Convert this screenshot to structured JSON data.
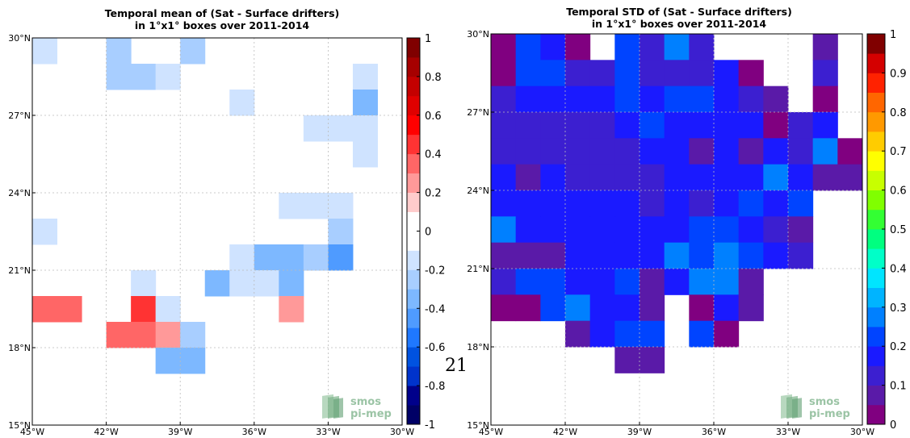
{
  "page_number": "21",
  "logo": {
    "line1": "smos",
    "line2": "pi-mep"
  },
  "chart_data": [
    {
      "type": "heatmap",
      "title": "Temporal mean of (Sat - Surface drifters)",
      "subtitle": "in 1°x1° boxes over 2011-2014",
      "x_ticks": [
        "45°W",
        "42°W",
        "39°W",
        "36°W",
        "33°W",
        "30°W"
      ],
      "y_ticks": [
        "30°N",
        "27°N",
        "24°N",
        "21°N",
        "18°N",
        "15°N"
      ],
      "xlim": [
        -45,
        -30
      ],
      "ylim": [
        15,
        30
      ],
      "colorbar": {
        "min": -1,
        "max": 1,
        "tick_labels": [
          "1",
          "0.8",
          "0.6",
          "0.4",
          "0.2",
          "0",
          "-0.2",
          "-0.4",
          "-0.6",
          "-0.8",
          "-1"
        ],
        "colors": [
          "#000066",
          "#00008b",
          "#0033cc",
          "#0052e0",
          "#1f78ff",
          "#4f9bff",
          "#7db8ff",
          "#a8ceff",
          "#cfe3ff",
          "#ffffff",
          "#ffffff",
          "#ffcccc",
          "#ff9999",
          "#ff6666",
          "#ff3333",
          "#ff0000",
          "#e00000",
          "#c40000",
          "#a60000",
          "#800000"
        ]
      },
      "cells": [
        {
          "lon": -45,
          "lat": 29,
          "v": -0.15
        },
        {
          "lon": -42,
          "lat": 29,
          "v": -0.3
        },
        {
          "lon": -39,
          "lat": 29,
          "v": -0.3
        },
        {
          "lon": -42,
          "lat": 28,
          "v": -0.3
        },
        {
          "lon": -41,
          "lat": 28,
          "v": -0.3
        },
        {
          "lon": -40,
          "lat": 28,
          "v": -0.2
        },
        {
          "lon": -32,
          "lat": 28,
          "v": -0.2
        },
        {
          "lon": -37,
          "lat": 27,
          "v": -0.15
        },
        {
          "lon": -32,
          "lat": 27,
          "v": -0.35
        },
        {
          "lon": -34,
          "lat": 26,
          "v": -0.15
        },
        {
          "lon": -33,
          "lat": 26,
          "v": -0.15
        },
        {
          "lon": -32,
          "lat": 26,
          "v": -0.15
        },
        {
          "lon": -32,
          "lat": 25,
          "v": -0.15
        },
        {
          "lon": -35,
          "lat": 23,
          "v": -0.15
        },
        {
          "lon": -34,
          "lat": 23,
          "v": -0.15
        },
        {
          "lon": -33,
          "lat": 23,
          "v": -0.15
        },
        {
          "lon": -45,
          "lat": 22,
          "v": -0.15
        },
        {
          "lon": -33,
          "lat": 22,
          "v": -0.3
        },
        {
          "lon": -37,
          "lat": 21,
          "v": -0.15
        },
        {
          "lon": -36,
          "lat": 21,
          "v": -0.35
        },
        {
          "lon": -35,
          "lat": 21,
          "v": -0.4
        },
        {
          "lon": -34,
          "lat": 21,
          "v": -0.3
        },
        {
          "lon": -33,
          "lat": 21,
          "v": -0.45
        },
        {
          "lon": -41,
          "lat": 20,
          "v": -0.2
        },
        {
          "lon": -38,
          "lat": 20,
          "v": -0.4
        },
        {
          "lon": -37,
          "lat": 20,
          "v": -0.15
        },
        {
          "lon": -36,
          "lat": 20,
          "v": -0.15
        },
        {
          "lon": -35,
          "lat": 20,
          "v": -0.35
        },
        {
          "lon": -45,
          "lat": 19,
          "v": 0.3
        },
        {
          "lon": -44,
          "lat": 19,
          "v": 0.3
        },
        {
          "lon": -41,
          "lat": 19,
          "v": 0.45
        },
        {
          "lon": -40,
          "lat": 19,
          "v": -0.15
        },
        {
          "lon": -35,
          "lat": 19,
          "v": 0.2
        },
        {
          "lon": -42,
          "lat": 18,
          "v": 0.3
        },
        {
          "lon": -41,
          "lat": 18,
          "v": 0.3
        },
        {
          "lon": -40,
          "lat": 18,
          "v": 0.2
        },
        {
          "lon": -39,
          "lat": 18,
          "v": -0.3
        },
        {
          "lon": -40,
          "lat": 17,
          "v": -0.35
        },
        {
          "lon": -39,
          "lat": 17,
          "v": -0.35
        }
      ]
    },
    {
      "type": "heatmap",
      "title": "Temporal STD of (Sat - Surface drifters)",
      "subtitle": "in 1°x1° boxes over 2011-2014",
      "x_ticks": [
        "45°W",
        "42°W",
        "39°W",
        "36°W",
        "33°W",
        "30°W"
      ],
      "y_ticks": [
        "30°N",
        "27°N",
        "24°N",
        "21°N",
        "18°N",
        "15°N"
      ],
      "xlim": [
        -45,
        -30
      ],
      "ylim": [
        15,
        30
      ],
      "colorbar": {
        "min": 0,
        "max": 1,
        "tick_labels": [
          "1",
          "0.9",
          "0.8",
          "0.7",
          "0.6",
          "0.5",
          "0.4",
          "0.3",
          "0.2",
          "0.1",
          "0"
        ],
        "colors": [
          "#800080",
          "#5a1aa8",
          "#3c1fd0",
          "#1a1aff",
          "#0044ff",
          "#0080ff",
          "#00b4ff",
          "#00e5ff",
          "#00ffc8",
          "#00ff80",
          "#33ff33",
          "#80ff00",
          "#c8ff00",
          "#ffff00",
          "#ffcc00",
          "#ff9900",
          "#ff6600",
          "#ff2200",
          "#d40000",
          "#800000"
        ]
      },
      "cells": [
        {
          "lon": -45,
          "lat": 29,
          "v": 0.02
        },
        {
          "lon": -44,
          "lat": 29,
          "v": 0.2
        },
        {
          "lon": -43,
          "lat": 29,
          "v": 0.15
        },
        {
          "lon": -42,
          "lat": 29,
          "v": 0.02
        },
        {
          "lon": -40,
          "lat": 29,
          "v": 0.2
        },
        {
          "lon": -39,
          "lat": 29,
          "v": 0.1
        },
        {
          "lon": -38,
          "lat": 29,
          "v": 0.27
        },
        {
          "lon": -37,
          "lat": 29,
          "v": 0.1
        },
        {
          "lon": -32,
          "lat": 29,
          "v": 0.05
        },
        {
          "lon": -45,
          "lat": 28,
          "v": 0.02
        },
        {
          "lon": -44,
          "lat": 28,
          "v": 0.2
        },
        {
          "lon": -43,
          "lat": 28,
          "v": 0.2
        },
        {
          "lon": -42,
          "lat": 28,
          "v": 0.1
        },
        {
          "lon": -41,
          "lat": 28,
          "v": 0.1
        },
        {
          "lon": -40,
          "lat": 28,
          "v": 0.2
        },
        {
          "lon": -39,
          "lat": 28,
          "v": 0.1
        },
        {
          "lon": -38,
          "lat": 28,
          "v": 0.1
        },
        {
          "lon": -37,
          "lat": 28,
          "v": 0.1
        },
        {
          "lon": -36,
          "lat": 28,
          "v": 0.15
        },
        {
          "lon": -35,
          "lat": 28,
          "v": 0.02
        },
        {
          "lon": -32,
          "lat": 28,
          "v": 0.1
        },
        {
          "lon": -45,
          "lat": 27,
          "v": 0.1
        },
        {
          "lon": -44,
          "lat": 27,
          "v": 0.15
        },
        {
          "lon": -43,
          "lat": 27,
          "v": 0.15
        },
        {
          "lon": -42,
          "lat": 27,
          "v": 0.15
        },
        {
          "lon": -41,
          "lat": 27,
          "v": 0.15
        },
        {
          "lon": -40,
          "lat": 27,
          "v": 0.2
        },
        {
          "lon": -39,
          "lat": 27,
          "v": 0.15
        },
        {
          "lon": -38,
          "lat": 27,
          "v": 0.2
        },
        {
          "lon": -37,
          "lat": 27,
          "v": 0.2
        },
        {
          "lon": -36,
          "lat": 27,
          "v": 0.15
        },
        {
          "lon": -35,
          "lat": 27,
          "v": 0.1
        },
        {
          "lon": -34,
          "lat": 27,
          "v": 0.05
        },
        {
          "lon": -32,
          "lat": 27,
          "v": 0.02
        },
        {
          "lon": -45,
          "lat": 26,
          "v": 0.1
        },
        {
          "lon": -44,
          "lat": 26,
          "v": 0.1
        },
        {
          "lon": -43,
          "lat": 26,
          "v": 0.1
        },
        {
          "lon": -42,
          "lat": 26,
          "v": 0.1
        },
        {
          "lon": -41,
          "lat": 26,
          "v": 0.1
        },
        {
          "lon": -40,
          "lat": 26,
          "v": 0.15
        },
        {
          "lon": -39,
          "lat": 26,
          "v": 0.2
        },
        {
          "lon": -38,
          "lat": 26,
          "v": 0.15
        },
        {
          "lon": -37,
          "lat": 26,
          "v": 0.15
        },
        {
          "lon": -36,
          "lat": 26,
          "v": 0.15
        },
        {
          "lon": -35,
          "lat": 26,
          "v": 0.15
        },
        {
          "lon": -34,
          "lat": 26,
          "v": 0.02
        },
        {
          "lon": -33,
          "lat": 26,
          "v": 0.1
        },
        {
          "lon": -32,
          "lat": 26,
          "v": 0.15
        },
        {
          "lon": -45,
          "lat": 25,
          "v": 0.1
        },
        {
          "lon": -44,
          "lat": 25,
          "v": 0.1
        },
        {
          "lon": -43,
          "lat": 25,
          "v": 0.1
        },
        {
          "lon": -42,
          "lat": 25,
          "v": 0.1
        },
        {
          "lon": -41,
          "lat": 25,
          "v": 0.1
        },
        {
          "lon": -40,
          "lat": 25,
          "v": 0.1
        },
        {
          "lon": -39,
          "lat": 25,
          "v": 0.15
        },
        {
          "lon": -38,
          "lat": 25,
          "v": 0.15
        },
        {
          "lon": -37,
          "lat": 25,
          "v": 0.05
        },
        {
          "lon": -36,
          "lat": 25,
          "v": 0.15
        },
        {
          "lon": -35,
          "lat": 25,
          "v": 0.05
        },
        {
          "lon": -34,
          "lat": 25,
          "v": 0.15
        },
        {
          "lon": -33,
          "lat": 25,
          "v": 0.1
        },
        {
          "lon": -32,
          "lat": 25,
          "v": 0.27
        },
        {
          "lon": -31,
          "lat": 25,
          "v": 0.02
        },
        {
          "lon": -45,
          "lat": 24,
          "v": 0.15
        },
        {
          "lon": -44,
          "lat": 24,
          "v": 0.05
        },
        {
          "lon": -43,
          "lat": 24,
          "v": 0.15
        },
        {
          "lon": -42,
          "lat": 24,
          "v": 0.1
        },
        {
          "lon": -41,
          "lat": 24,
          "v": 0.1
        },
        {
          "lon": -40,
          "lat": 24,
          "v": 0.1
        },
        {
          "lon": -39,
          "lat": 24,
          "v": 0.1
        },
        {
          "lon": -38,
          "lat": 24,
          "v": 0.15
        },
        {
          "lon": -37,
          "lat": 24,
          "v": 0.15
        },
        {
          "lon": -36,
          "lat": 24,
          "v": 0.15
        },
        {
          "lon": -35,
          "lat": 24,
          "v": 0.15
        },
        {
          "lon": -34,
          "lat": 24,
          "v": 0.25
        },
        {
          "lon": -33,
          "lat": 24,
          "v": 0.15
        },
        {
          "lon": -32,
          "lat": 24,
          "v": 0.05
        },
        {
          "lon": -31,
          "lat": 24,
          "v": 0.05
        },
        {
          "lon": -45,
          "lat": 23,
          "v": 0.15
        },
        {
          "lon": -44,
          "lat": 23,
          "v": 0.15
        },
        {
          "lon": -43,
          "lat": 23,
          "v": 0.15
        },
        {
          "lon": -42,
          "lat": 23,
          "v": 0.15
        },
        {
          "lon": -41,
          "lat": 23,
          "v": 0.15
        },
        {
          "lon": -40,
          "lat": 23,
          "v": 0.15
        },
        {
          "lon": -39,
          "lat": 23,
          "v": 0.1
        },
        {
          "lon": -38,
          "lat": 23,
          "v": 0.15
        },
        {
          "lon": -37,
          "lat": 23,
          "v": 0.1
        },
        {
          "lon": -36,
          "lat": 23,
          "v": 0.15
        },
        {
          "lon": -35,
          "lat": 23,
          "v": 0.2
        },
        {
          "lon": -34,
          "lat": 23,
          "v": 0.15
        },
        {
          "lon": -33,
          "lat": 23,
          "v": 0.2
        },
        {
          "lon": -45,
          "lat": 22,
          "v": 0.27
        },
        {
          "lon": -44,
          "lat": 22,
          "v": 0.15
        },
        {
          "lon": -43,
          "lat": 22,
          "v": 0.15
        },
        {
          "lon": -42,
          "lat": 22,
          "v": 0.15
        },
        {
          "lon": -41,
          "lat": 22,
          "v": 0.15
        },
        {
          "lon": -40,
          "lat": 22,
          "v": 0.15
        },
        {
          "lon": -39,
          "lat": 22,
          "v": 0.15
        },
        {
          "lon": -38,
          "lat": 22,
          "v": 0.15
        },
        {
          "lon": -37,
          "lat": 22,
          "v": 0.2
        },
        {
          "lon": -36,
          "lat": 22,
          "v": 0.2
        },
        {
          "lon": -35,
          "lat": 22,
          "v": 0.15
        },
        {
          "lon": -34,
          "lat": 22,
          "v": 0.1
        },
        {
          "lon": -33,
          "lat": 22,
          "v": 0.05
        },
        {
          "lon": -45,
          "lat": 21,
          "v": 0.05
        },
        {
          "lon": -44,
          "lat": 21,
          "v": 0.05
        },
        {
          "lon": -43,
          "lat": 21,
          "v": 0.05
        },
        {
          "lon": -42,
          "lat": 21,
          "v": 0.15
        },
        {
          "lon": -41,
          "lat": 21,
          "v": 0.15
        },
        {
          "lon": -40,
          "lat": 21,
          "v": 0.15
        },
        {
          "lon": -39,
          "lat": 21,
          "v": 0.15
        },
        {
          "lon": -38,
          "lat": 21,
          "v": 0.25
        },
        {
          "lon": -37,
          "lat": 21,
          "v": 0.2
        },
        {
          "lon": -36,
          "lat": 21,
          "v": 0.25
        },
        {
          "lon": -35,
          "lat": 21,
          "v": 0.2
        },
        {
          "lon": -34,
          "lat": 21,
          "v": 0.15
        },
        {
          "lon": -33,
          "lat": 21,
          "v": 0.1
        },
        {
          "lon": -45,
          "lat": 20,
          "v": 0.1
        },
        {
          "lon": -44,
          "lat": 20,
          "v": 0.22
        },
        {
          "lon": -43,
          "lat": 20,
          "v": 0.22
        },
        {
          "lon": -42,
          "lat": 20,
          "v": 0.15
        },
        {
          "lon": -41,
          "lat": 20,
          "v": 0.15
        },
        {
          "lon": -40,
          "lat": 20,
          "v": 0.2
        },
        {
          "lon": -39,
          "lat": 20,
          "v": 0.05
        },
        {
          "lon": -38,
          "lat": 20,
          "v": 0.15
        },
        {
          "lon": -37,
          "lat": 20,
          "v": 0.25
        },
        {
          "lon": -36,
          "lat": 20,
          "v": 0.25
        },
        {
          "lon": -35,
          "lat": 20,
          "v": 0.05
        },
        {
          "lon": -45,
          "lat": 19,
          "v": 0.02
        },
        {
          "lon": -44,
          "lat": 19,
          "v": 0.02
        },
        {
          "lon": -43,
          "lat": 19,
          "v": 0.2
        },
        {
          "lon": -42,
          "lat": 19,
          "v": 0.25
        },
        {
          "lon": -41,
          "lat": 19,
          "v": 0.15
        },
        {
          "lon": -40,
          "lat": 19,
          "v": 0.15
        },
        {
          "lon": -39,
          "lat": 19,
          "v": 0.05
        },
        {
          "lon": -37,
          "lat": 19,
          "v": 0.02
        },
        {
          "lon": -36,
          "lat": 19,
          "v": 0.15
        },
        {
          "lon": -35,
          "lat": 19,
          "v": 0.05
        },
        {
          "lon": -42,
          "lat": 18,
          "v": 0.05
        },
        {
          "lon": -41,
          "lat": 18,
          "v": 0.15
        },
        {
          "lon": -40,
          "lat": 18,
          "v": 0.2
        },
        {
          "lon": -39,
          "lat": 18,
          "v": 0.2
        },
        {
          "lon": -37,
          "lat": 18,
          "v": 0.22
        },
        {
          "lon": -36,
          "lat": 18,
          "v": 0.02
        },
        {
          "lon": -40,
          "lat": 17,
          "v": 0.05
        },
        {
          "lon": -39,
          "lat": 17,
          "v": 0.05
        }
      ]
    }
  ]
}
